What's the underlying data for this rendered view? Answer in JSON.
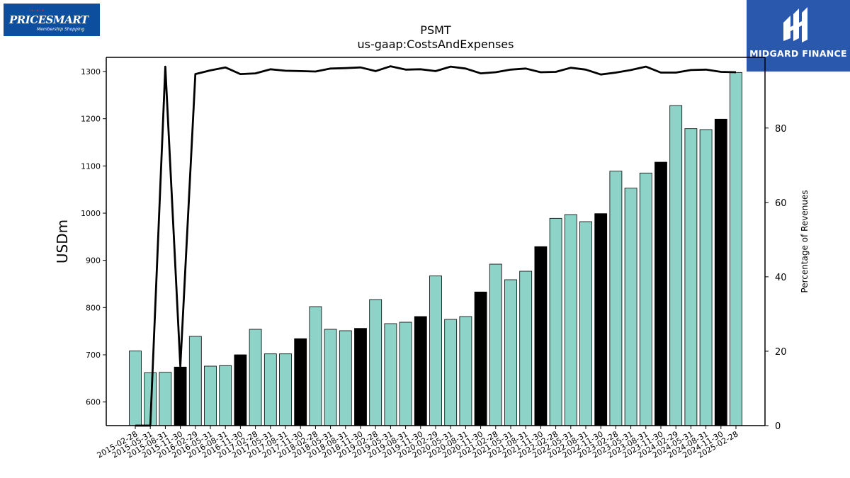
{
  "logos": {
    "left_brand": "PRICESMART",
    "left_tagline": "Membership Shopping",
    "left_color": "#0d4f9e",
    "right_name": "MIDGARD FINANCE",
    "right_color": "#2a58ad"
  },
  "chart_data": {
    "type": "bar",
    "title": "PSMT",
    "subtitle": "us-gaap:CostsAndExpenses",
    "ylabel": "USDm",
    "y2label": "Percentage of Revenues",
    "ylim": [
      550,
      1330
    ],
    "y2lim": [
      0,
      99
    ],
    "yticks": [
      "600",
      "700",
      "800",
      "900",
      "1000",
      "1100",
      "1200",
      "1300"
    ],
    "y2ticks": [
      "0",
      "20",
      "40",
      "60",
      "80"
    ],
    "categories": [
      "2015-02-28",
      "2015-05-31",
      "2015-08-31",
      "2015-11-30",
      "2016-02-29",
      "2016-05-31",
      "2016-08-31",
      "2016-11-30",
      "2017-02-28",
      "2017-05-31",
      "2017-08-31",
      "2017-11-30",
      "2018-02-28",
      "2018-05-31",
      "2018-08-31",
      "2018-11-30",
      "2019-02-28",
      "2019-05-31",
      "2019-08-31",
      "2019-11-30",
      "2020-02-29",
      "2020-05-31",
      "2020-08-31",
      "2020-11-30",
      "2021-02-28",
      "2021-05-31",
      "2021-08-31",
      "2021-11-30",
      "2022-02-28",
      "2022-05-31",
      "2022-08-31",
      "2022-11-30",
      "2023-02-28",
      "2023-05-31",
      "2023-08-31",
      "2023-11-30",
      "2024-02-29",
      "2024-05-31",
      "2024-08-31",
      "2024-11-30",
      "2025-02-28"
    ],
    "series": [
      {
        "values": [
          708,
          662,
          663,
          674,
          739,
          676,
          677,
          700,
          754,
          702,
          702,
          734,
          802,
          754,
          751,
          756,
          817,
          766,
          769,
          781,
          867,
          775,
          781,
          833,
          892,
          859,
          877,
          929,
          989,
          997,
          982,
          999,
          1089,
          1053,
          1085,
          1108,
          1228,
          1179,
          1177,
          1199,
          1298
        ],
        "highlight": [
          false,
          false,
          false,
          true,
          false,
          false,
          false,
          true,
          false,
          false,
          false,
          true,
          false,
          false,
          false,
          true,
          false,
          false,
          false,
          true,
          false,
          false,
          false,
          true,
          false,
          false,
          false,
          true,
          false,
          false,
          false,
          true,
          false,
          false,
          false,
          true,
          false,
          false,
          false,
          true,
          false
        ]
      },
      {
        "axis": "right",
        "values": [
          0,
          0,
          96.5,
          16,
          94.5,
          95.5,
          96.3,
          94.5,
          94.7,
          95.8,
          95.4,
          95.3,
          95.2,
          96,
          96.1,
          96.3,
          95.3,
          96.6,
          95.7,
          95.8,
          95.3,
          96.5,
          96,
          94.7,
          95,
          95.7,
          96,
          95,
          95.1,
          96.2,
          95.7,
          94.4,
          94.9,
          95.6,
          96.5,
          94.9,
          94.9,
          95.6,
          95.7,
          95.1,
          95
        ]
      }
    ],
    "colors": {
      "bar": "#8dd3c7",
      "bar_highlight": "#000000",
      "line": "#000000",
      "edge": "#000000"
    },
    "grid": false
  }
}
